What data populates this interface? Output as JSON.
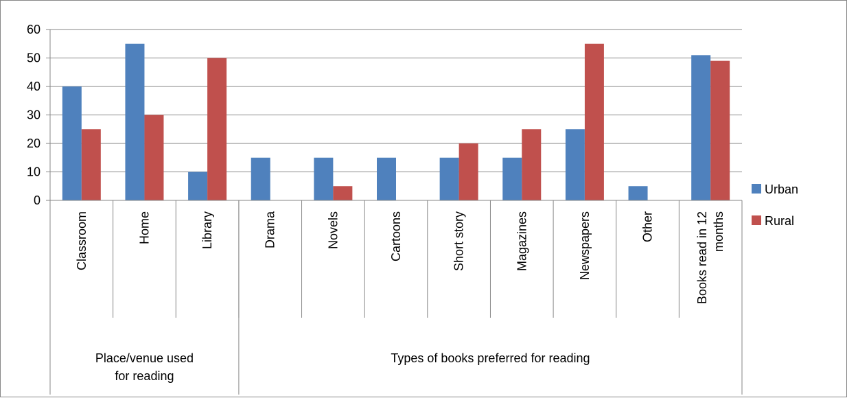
{
  "chart_data": {
    "type": "bar",
    "title": "",
    "xlabel": "",
    "ylabel": "",
    "ylim": [
      0,
      60
    ],
    "yticks": [
      0,
      10,
      20,
      30,
      40,
      50,
      60
    ],
    "grid": true,
    "legend_position": "right",
    "groups": [
      {
        "label": "Place/venue used for reading",
        "categories": [
          "Classroom",
          "Home",
          "Library"
        ]
      },
      {
        "label": "Types of books preferred for reading",
        "categories": [
          "Drama",
          "Novels",
          "Cartoons",
          "Short story",
          "Magazines",
          "Newspapers",
          "Other",
          "Books read in 12 months"
        ]
      }
    ],
    "categories": [
      "Classroom",
      "Home",
      "Library",
      "Drama",
      "Novels",
      "Cartoons",
      "Short story",
      "Magazines",
      "Newspapers",
      "Other",
      "Books read in 12 months"
    ],
    "series": [
      {
        "name": "Urban",
        "color": "#4f81bd",
        "values": [
          40,
          55,
          10,
          15,
          15,
          15,
          15,
          15,
          25,
          5,
          51
        ]
      },
      {
        "name": "Rural",
        "color": "#c0504d",
        "values": [
          25,
          30,
          50,
          0,
          5,
          0,
          20,
          25,
          55,
          0,
          49
        ]
      }
    ]
  }
}
